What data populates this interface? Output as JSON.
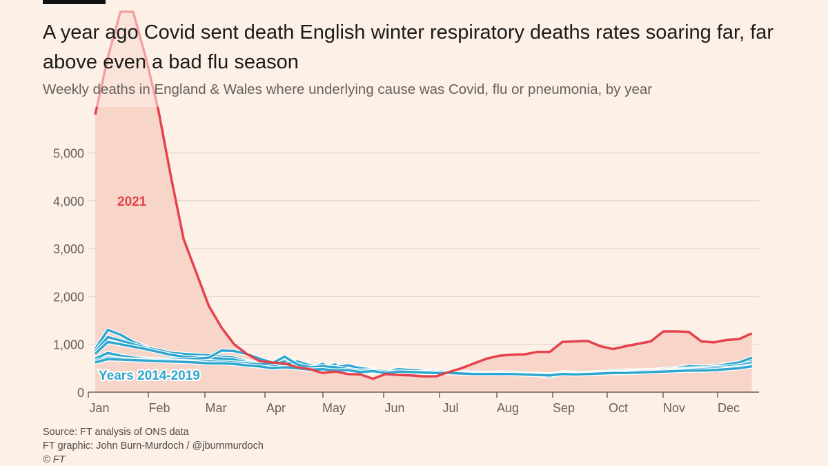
{
  "header": {
    "title": "A year ago Covid sent death English winter respiratory deaths rates soaring far, far above even a bad flu season",
    "subtitle": "Weekly deaths in England & Wales where underlying cause was Covid, flu or pneumonia, by year"
  },
  "footer": {
    "source": "Source: FT analysis of ONS data",
    "credit": "FT graphic: John Burn-Murdoch / @jburnmurdoch",
    "copyright": "© FT"
  },
  "chart_data": {
    "type": "line",
    "title": "A year ago Covid sent death English winter respiratory deaths rates soaring far, far above even a bad flu season",
    "subtitle": "Weekly deaths in England & Wales where underlying cause was Covid, flu or pneumonia, by year",
    "x_label": "",
    "y_label": "",
    "x_ticks": [
      "Jan",
      "Feb",
      "Mar",
      "Apr",
      "May",
      "Jun",
      "Jul",
      "Aug",
      "Sep",
      "Oct",
      "Nov",
      "Dec"
    ],
    "y_ticks": [
      0,
      1000,
      2000,
      3000,
      4000,
      5000
    ],
    "y_tick_labels": [
      "0",
      "1,000",
      "2,000",
      "3,000",
      "4,000",
      "5,000"
    ],
    "ylim": [
      0,
      8000
    ],
    "x_unit": "week of year",
    "grid": "horizontal",
    "colors": {
      "highlight": "#e5424d",
      "comparison": "#2fa6cf",
      "fill": "#f7d5c8",
      "background": "#fdf1e7"
    },
    "annotations": [
      {
        "text": "2021",
        "series": "2021"
      },
      {
        "text": "Years 2014-2019",
        "series": "2014-2019"
      }
    ],
    "series": [
      {
        "name": "2021",
        "highlight": true,
        "weeks": 53,
        "values": [
          5800,
          7000,
          7950,
          7950,
          7000,
          5900,
          4500,
          3200,
          2500,
          1800,
          1350,
          1000,
          800,
          650,
          620,
          600,
          520,
          480,
          400,
          430,
          380,
          370,
          280,
          380,
          360,
          350,
          330,
          330,
          420,
          500,
          600,
          700,
          760,
          780,
          790,
          840,
          840,
          1050,
          1060,
          1070,
          960,
          900,
          960,
          1010,
          1060,
          1270,
          1270,
          1260,
          1060,
          1040,
          1090,
          1110,
          1230
        ]
      },
      {
        "name": "2014-2019",
        "values": [
          900,
          1300,
          1200,
          1050,
          950,
          850,
          800,
          780,
          770,
          750,
          700,
          720,
          650,
          600,
          560,
          700,
          620,
          520,
          500,
          560,
          430,
          480,
          470,
          420,
          470,
          430,
          420,
          420,
          410,
          400,
          400,
          390,
          400,
          390,
          380,
          370,
          330,
          420,
          400,
          400,
          410,
          420,
          430,
          450,
          460,
          470,
          440,
          500,
          520,
          520,
          560,
          580,
          660
        ]
      },
      {
        "name": "2014-2019",
        "values": [
          850,
          1150,
          1080,
          1000,
          930,
          880,
          820,
          800,
          780,
          770,
          740,
          720,
          640,
          600,
          580,
          640,
          540,
          500,
          590,
          460,
          500,
          490,
          470,
          420,
          460,
          440,
          440,
          420,
          410,
          410,
          400,
          400,
          390,
          390,
          380,
          360,
          340,
          410,
          400,
          400,
          420,
          440,
          450,
          450,
          460,
          480,
          500,
          540,
          530,
          540,
          580,
          620,
          720
        ]
      },
      {
        "name": "2014-2019",
        "values": [
          800,
          1050,
          1000,
          950,
          900,
          840,
          780,
          740,
          730,
          720,
          700,
          680,
          620,
          600,
          550,
          560,
          520,
          490,
          500,
          580,
          440,
          470,
          460,
          400,
          450,
          430,
          420,
          420,
          410,
          400,
          390,
          380,
          390,
          380,
          370,
          360,
          320,
          400,
          380,
          380,
          400,
          420,
          430,
          440,
          450,
          460,
          480,
          490,
          500,
          520,
          530,
          560,
          610
        ]
      },
      {
        "name": "2014-2019",
        "values": [
          700,
          820,
          760,
          720,
          700,
          690,
          690,
          680,
          700,
          720,
          870,
          860,
          800,
          700,
          620,
          580,
          640,
          560,
          520,
          520,
          560,
          500,
          470,
          420,
          480,
          460,
          440,
          430,
          420,
          410,
          410,
          400,
          410,
          400,
          390,
          380,
          370,
          400,
          390,
          390,
          400,
          410,
          420,
          430,
          440,
          450,
          460,
          470,
          470,
          480,
          500,
          520,
          560
        ]
      },
      {
        "name": "2014-2019",
        "values": [
          650,
          720,
          700,
          680,
          680,
          670,
          660,
          650,
          640,
          640,
          630,
          620,
          600,
          580,
          600,
          740,
          580,
          520,
          540,
          520,
          480,
          450,
          460,
          430,
          420,
          410,
          420,
          410,
          400,
          400,
          390,
          390,
          390,
          380,
          380,
          370,
          360,
          380,
          380,
          380,
          390,
          400,
          410,
          430,
          440,
          420,
          460,
          470,
          480,
          490,
          500,
          520,
          560
        ]
      },
      {
        "name": "2014-2019",
        "values": [
          620,
          690,
          680,
          670,
          660,
          650,
          640,
          630,
          620,
          600,
          600,
          590,
          560,
          540,
          500,
          520,
          500,
          470,
          480,
          450,
          460,
          420,
          440,
          400,
          430,
          420,
          410,
          400,
          400,
          390,
          380,
          380,
          380,
          380,
          370,
          360,
          350,
          380,
          370,
          380,
          390,
          400,
          400,
          410,
          420,
          430,
          440,
          450,
          450,
          460,
          480,
          500,
          540
        ]
      }
    ]
  }
}
